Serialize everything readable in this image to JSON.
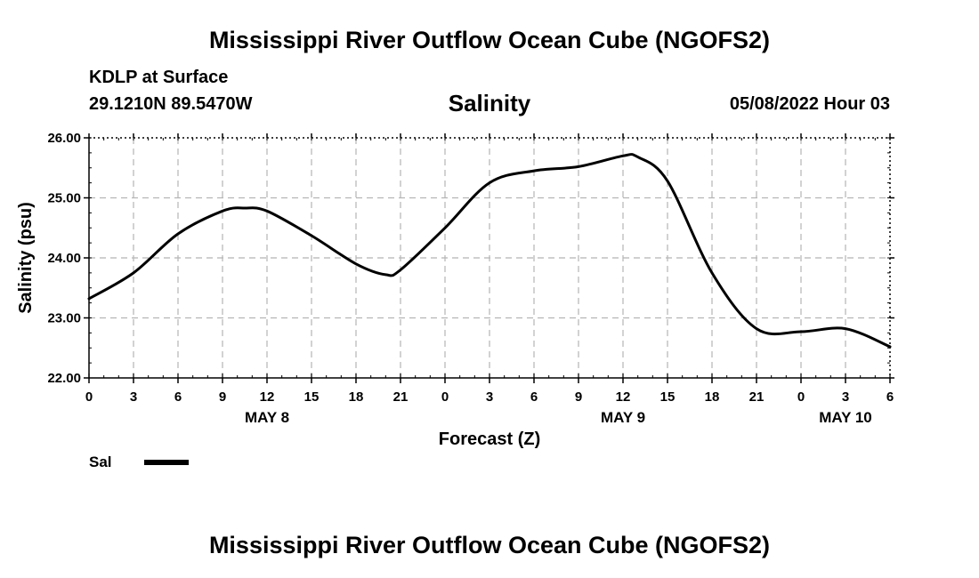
{
  "header": {
    "title": "Mississippi River Outflow Ocean Cube (NGOFS2)",
    "station": "KDLP at Surface",
    "coords": "29.1210N  89.5470W",
    "variable": "Salinity",
    "datetime": "05/08/2022 Hour 03"
  },
  "footer": {
    "title": "Mississippi River Outflow Ocean Cube (NGOFS2)"
  },
  "legend": {
    "label": "Sal"
  },
  "chart_data": {
    "type": "line",
    "title": "Salinity",
    "xlabel": "Forecast (Z)",
    "ylabel": "Salinity (psu)",
    "ylim": [
      22.0,
      26.0
    ],
    "yticks": [
      "22.00",
      "23.00",
      "24.00",
      "25.00",
      "26.00"
    ],
    "xlim": [
      0,
      54
    ],
    "xtick_labels": [
      "0",
      "3",
      "6",
      "9",
      "12",
      "15",
      "18",
      "21",
      "0",
      "3",
      "6",
      "9",
      "12",
      "15",
      "18",
      "21",
      "0",
      "3",
      "6"
    ],
    "day_labels": [
      {
        "hour": 12,
        "label": "MAY 8"
      },
      {
        "hour": 36,
        "label": "MAY 9"
      },
      {
        "hour": 51,
        "label": "MAY 10"
      }
    ],
    "grid": true,
    "series": [
      {
        "name": "Sal",
        "x": [
          0,
          3,
          6,
          9,
          10.5,
          12,
          15,
          18,
          20,
          21,
          24,
          27,
          30,
          33,
          36,
          37,
          39,
          42,
          45,
          48,
          51,
          54
        ],
        "values": [
          23.32,
          23.75,
          24.4,
          24.78,
          24.83,
          24.78,
          24.37,
          23.9,
          23.72,
          23.8,
          24.5,
          25.25,
          25.45,
          25.52,
          25.7,
          25.68,
          25.28,
          23.75,
          22.82,
          22.77,
          22.82,
          22.52
        ]
      }
    ]
  }
}
